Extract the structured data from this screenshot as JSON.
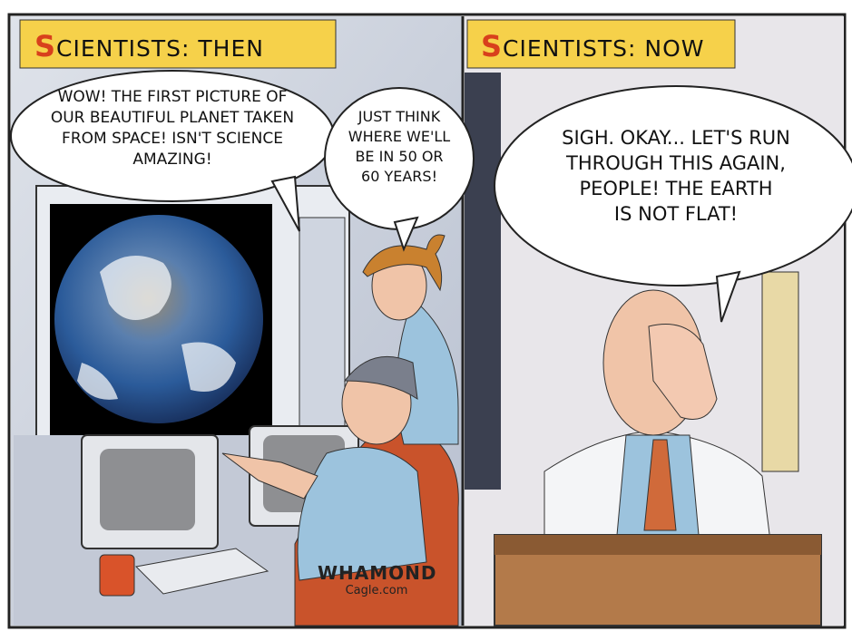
{
  "panels": [
    {
      "title": "SCIENTISTS: THEN",
      "bubbles": [
        {
          "lines": [
            "WOW! THE FIRST PICTURE OF",
            "OUR BEAUTIFUL PLANET TAKEN",
            "FROM SPACE! ISN'T SCIENCE",
            "AMAZING!"
          ]
        },
        {
          "lines": [
            "JUST THINK",
            "WHERE WE'LL",
            "BE IN 50 OR",
            "60 YEARS!"
          ]
        }
      ]
    },
    {
      "title": "SCIENTISTS: NOW",
      "bubbles": [
        {
          "lines": [
            "SIGH. OKAY... LET'S RUN",
            "THROUGH THIS AGAIN,",
            "PEOPLE! THE EARTH",
            "IS NOT FLAT!"
          ]
        }
      ]
    }
  ],
  "signature": {
    "artist": "WHAMOND",
    "site": "Cagle.com"
  }
}
